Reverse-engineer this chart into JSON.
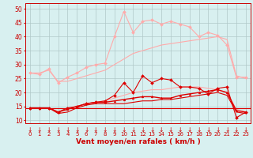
{
  "x": [
    0,
    1,
    2,
    3,
    4,
    5,
    6,
    7,
    8,
    9,
    10,
    11,
    12,
    13,
    14,
    15,
    16,
    17,
    18,
    19,
    20,
    21,
    22,
    23
  ],
  "series": [
    {
      "name": "max_gust_light",
      "color": "#ffaaaa",
      "linewidth": 0.8,
      "marker": "D",
      "markersize": 2.0,
      "values": [
        27,
        26.5,
        28.5,
        23.5,
        25.5,
        27,
        29,
        30,
        30.5,
        40,
        49,
        41.5,
        45.5,
        46,
        44.5,
        45.5,
        44.5,
        43.5,
        40,
        41.5,
        40.5,
        37,
        25.5,
        25.5
      ]
    },
    {
      "name": "mean_gust_light",
      "color": "#ffaaaa",
      "linewidth": 0.8,
      "marker": "",
      "markersize": 0,
      "values": [
        27,
        27,
        28,
        24,
        24,
        25,
        26,
        27,
        28,
        30,
        32,
        34,
        35,
        36,
        37,
        37.5,
        38,
        38.5,
        39,
        39.5,
        40,
        39,
        26,
        25
      ]
    },
    {
      "name": "mean_wind_light",
      "color": "#ffaaaa",
      "linewidth": 0.8,
      "marker": "",
      "markersize": 0,
      "values": [
        14.5,
        14.5,
        14.5,
        13,
        14,
        15,
        16,
        16.5,
        17,
        18,
        19,
        20,
        20.5,
        21,
        21,
        21.5,
        22,
        22,
        22,
        21.5,
        21,
        20,
        14,
        13
      ]
    },
    {
      "name": "max_gust_dark",
      "color": "#dd0000",
      "linewidth": 0.8,
      "marker": "D",
      "markersize": 2.0,
      "values": [
        14.5,
        14.5,
        14.5,
        13,
        14.5,
        15,
        16,
        16.5,
        17,
        19,
        23.5,
        20,
        26,
        23.5,
        25,
        24.5,
        22,
        22,
        21.5,
        19.5,
        21.5,
        22,
        11,
        13
      ]
    },
    {
      "name": "mean_wind_dark",
      "color": "#dd0000",
      "linewidth": 1.0,
      "marker": "^",
      "markersize": 2.0,
      "values": [
        14.5,
        14.5,
        14.5,
        13,
        14,
        15,
        16,
        16.5,
        16.5,
        17,
        17.5,
        18,
        18.5,
        18.5,
        18,
        18,
        19,
        19.5,
        20,
        20.5,
        21,
        20,
        13.5,
        13
      ]
    },
    {
      "name": "min_wind_dark",
      "color": "#dd0000",
      "linewidth": 0.8,
      "marker": "",
      "markersize": 0,
      "values": [
        14.5,
        14.5,
        14.5,
        12.5,
        13,
        14.5,
        15.5,
        16,
        16,
        16,
        16,
        16.5,
        17,
        17,
        17.5,
        17.5,
        18,
        18.5,
        19,
        19.5,
        20,
        19,
        13,
        12.5
      ]
    }
  ],
  "hline_y": 14.5,
  "hline_color": "#dd0000",
  "xlabel": "Vent moyen/en rafales ( km/h )",
  "xlabel_color": "#cc0000",
  "xlabel_fontsize": 6.5,
  "xlim": [
    -0.5,
    23.5
  ],
  "ylim": [
    9,
    52
  ],
  "yticks": [
    10,
    15,
    20,
    25,
    30,
    35,
    40,
    45,
    50
  ],
  "xticks": [
    0,
    1,
    2,
    3,
    4,
    5,
    6,
    7,
    8,
    9,
    10,
    11,
    12,
    13,
    14,
    15,
    16,
    17,
    18,
    19,
    20,
    21,
    22,
    23
  ],
  "background_color": "#d8f0f0",
  "grid_color": "#b0c8c8",
  "tick_color": "#cc0000",
  "ytick_fontsize": 5.5,
  "xtick_fontsize": 5.0,
  "arrow_color": "#cc0000",
  "arrow_fontsize": 5.5
}
